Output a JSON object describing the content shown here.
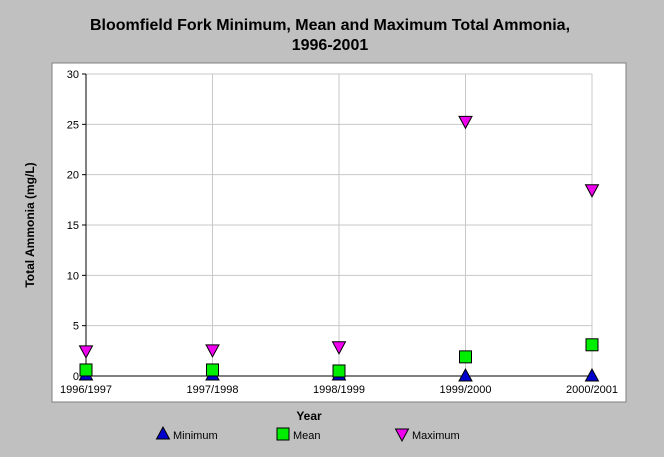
{
  "chart_data": {
    "type": "scatter",
    "title": "Bloomfield Fork Minimum, Mean and Maximum Total Ammonia,",
    "subtitle": "1996-2001",
    "xlabel": "Year",
    "ylabel": "Total Ammonia (mg/L)",
    "categories": [
      "1996/1997",
      "1997/1998",
      "1998/1999",
      "1999/2000",
      "2000/2001"
    ],
    "ylim": [
      0,
      30
    ],
    "yticks": [
      0,
      5,
      10,
      15,
      20,
      25,
      30
    ],
    "grid": true,
    "legend_position": "bottom",
    "series": [
      {
        "name": "Minimum",
        "marker": "triangle-up",
        "color": "#0000cc",
        "values": [
          0.1,
          0.1,
          0.1,
          0.0,
          0.0
        ]
      },
      {
        "name": "Mean",
        "marker": "square",
        "color": "#00ee00",
        "values": [
          0.6,
          0.6,
          0.5,
          1.9,
          3.1
        ]
      },
      {
        "name": "Maximum",
        "marker": "triangle-down",
        "color": "#ee00ee",
        "values": [
          2.5,
          2.6,
          2.9,
          25.3,
          18.5
        ]
      }
    ]
  }
}
